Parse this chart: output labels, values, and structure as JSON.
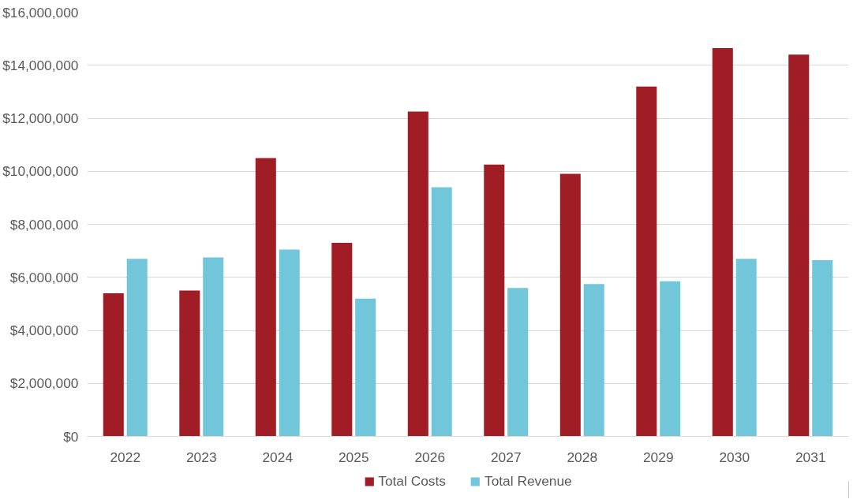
{
  "chart_data": {
    "type": "bar",
    "categories": [
      "2022",
      "2023",
      "2024",
      "2025",
      "2026",
      "2027",
      "2028",
      "2029",
      "2030",
      "2031"
    ],
    "series": [
      {
        "name": "Total Costs",
        "color": "#a01d26",
        "values": [
          5400000,
          5500000,
          10500000,
          7300000,
          12250000,
          10250000,
          9900000,
          13200000,
          14650000,
          14400000
        ]
      },
      {
        "name": "Total Revenue",
        "color": "#72c6da",
        "values": [
          6700000,
          6750000,
          7050000,
          5200000,
          9400000,
          5600000,
          5750000,
          5850000,
          6700000,
          6650000
        ]
      }
    ],
    "ylim": [
      0,
      16000000
    ],
    "yticks": [
      {
        "value": 0,
        "label": "$0"
      },
      {
        "value": 2000000,
        "label": "$2,000,000"
      },
      {
        "value": 4000000,
        "label": "$4,000,000"
      },
      {
        "value": 6000000,
        "label": "$6,000,000"
      },
      {
        "value": 8000000,
        "label": "$8,000,000"
      },
      {
        "value": 10000000,
        "label": "$10,000,000"
      },
      {
        "value": 12000000,
        "label": "$12,000,000"
      },
      {
        "value": 14000000,
        "label": "$14,000,000"
      },
      {
        "value": 16000000,
        "label": "$16,000,000"
      }
    ],
    "grid": "y",
    "legend": "bottom"
  }
}
